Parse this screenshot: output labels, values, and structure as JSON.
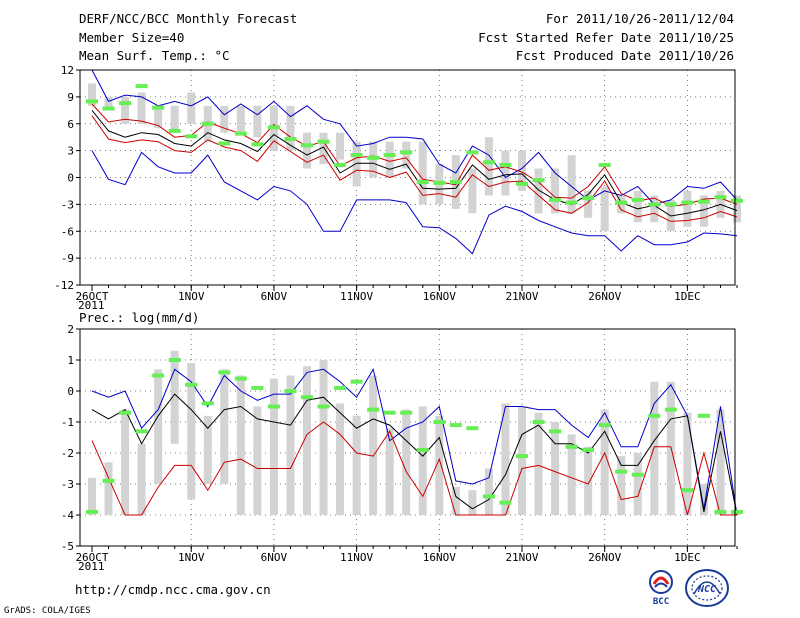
{
  "header": {
    "title": "DERF/NCC/BCC Monthly Forecast",
    "member_size": "Member Size=40",
    "variable_top": "Mean Surf. Temp.: °C",
    "period": "For 2011/10/26-2011/12/04",
    "fcst_started": "Fcst Started Refer Date 2011/10/25",
    "fcst_produced": "Fcst Produced Date 2011/10/26"
  },
  "footer": {
    "url": "http://cmdp.ncc.cma.gov.cn",
    "grads": "GrADS: COLA/IGES",
    "logo_bcc": "BCC",
    "logo_ncc": "NCC"
  },
  "colors": {
    "max_line": "#0000cc",
    "mean_line": "#000000",
    "min_line": "#cc0000",
    "spread_box": "#d3d3d3",
    "obs_marker": "#66ee55",
    "grid": "#555555"
  },
  "chart_data": [
    {
      "type": "line",
      "title": "Mean Surf. Temp.: °C",
      "ylim": [
        -12,
        12
      ],
      "yticks": [
        12,
        9,
        6,
        3,
        0,
        -3,
        -6,
        -9,
        -12
      ],
      "x_ticks": [
        {
          "day": 0,
          "label": "26OCT",
          "sub": "2011"
        },
        {
          "day": 6,
          "label": "1NOV"
        },
        {
          "day": 11,
          "label": "6NOV"
        },
        {
          "day": 16,
          "label": "11NOV"
        },
        {
          "day": 21,
          "label": "16NOV"
        },
        {
          "day": 26,
          "label": "21NOV"
        },
        {
          "day": 31,
          "label": "26NOV"
        },
        {
          "day": 36,
          "label": "1DEC"
        }
      ],
      "days": 40,
      "series": [
        {
          "name": "max",
          "values": [
            12,
            8.5,
            9.2,
            9,
            8,
            8.5,
            8,
            9,
            7,
            8.2,
            7,
            8.5,
            6.8,
            8,
            6.5,
            6,
            3.5,
            3.8,
            4.5,
            4.5,
            4.3,
            1.5,
            0.5,
            3.5,
            2.5,
            0,
            1,
            2.8,
            0.5,
            -1,
            -2.5,
            -1.5,
            -2,
            -1,
            -3,
            -2.5,
            -1,
            -1.2,
            -0.5,
            -2.5
          ]
        },
        {
          "name": "upper",
          "values": [
            8.2,
            6.2,
            6.5,
            6.3,
            5.8,
            4.5,
            4.7,
            6.2,
            5.5,
            4.9,
            3.9,
            5.9,
            4.5,
            3.5,
            4,
            1.3,
            2.2,
            2.4,
            1.8,
            2.2,
            -0.2,
            -0.5,
            -0.8,
            2.5,
            0.8,
            1.2,
            0.6,
            -0.5,
            -2.2,
            -2.3,
            -1,
            1.2,
            -1.8,
            -2.6,
            -2.3,
            -3.2,
            -3,
            -2.4,
            -2.3,
            -3
          ]
        },
        {
          "name": "mean",
          "values": [
            7.5,
            5.2,
            4.5,
            5,
            4.8,
            3.8,
            3.5,
            5,
            4.2,
            3.8,
            2.9,
            4.8,
            3.6,
            2.5,
            3.4,
            0.5,
            1.6,
            1.6,
            0.9,
            1.5,
            -1.2,
            -1.3,
            -1.2,
            1.4,
            -0.2,
            0.3,
            0.4,
            -1.4,
            -2.5,
            -3,
            -1.9,
            0.3,
            -2.8,
            -3.5,
            -3.1,
            -4.3,
            -4,
            -3.6,
            -3,
            -3.7
          ]
        },
        {
          "name": "lower",
          "values": [
            6.9,
            4.3,
            3.9,
            4.2,
            4,
            3,
            2.8,
            4.2,
            3.4,
            3,
            1.8,
            4.1,
            2.9,
            1.7,
            2.5,
            -0.3,
            0.8,
            0.7,
            0,
            0.6,
            -2,
            -1.8,
            -2.2,
            0.3,
            -1,
            -0.5,
            -0.4,
            -2,
            -3.6,
            -4,
            -2.8,
            -0.4,
            -3.6,
            -4.4,
            -4,
            -4.9,
            -4.8,
            -4.5,
            -3.8,
            -4.4
          ]
        },
        {
          "name": "min",
          "values": [
            3,
            -0.2,
            -0.8,
            2.8,
            1.2,
            0.5,
            0.5,
            2.5,
            -0.5,
            -1.5,
            -2.5,
            -1,
            -1.5,
            -3,
            -6,
            -6,
            -2.5,
            -2.5,
            -2.5,
            -2.8,
            -5.5,
            -5.6,
            -6.8,
            -8.5,
            -4.2,
            -3.2,
            -3.8,
            -4.8,
            -5.5,
            -6.2,
            -6.5,
            -6.5,
            -8.2,
            -6.5,
            -7.5,
            -7.5,
            -7.2,
            -6.2,
            -6.3,
            -6.5
          ]
        }
      ],
      "boxes": [
        [
          8,
          10.5
        ],
        [
          7.5,
          9
        ],
        [
          6,
          9
        ],
        [
          6,
          9.5
        ],
        [
          5.5,
          8
        ],
        [
          5,
          8
        ],
        [
          6,
          9.5
        ],
        [
          4,
          8
        ],
        [
          5,
          8
        ],
        [
          5,
          8
        ],
        [
          4.5,
          8
        ],
        [
          3,
          8
        ],
        [
          3,
          8
        ],
        [
          1,
          5
        ],
        [
          1.5,
          5
        ],
        [
          2,
          5
        ],
        [
          -1,
          4
        ],
        [
          0,
          4
        ],
        [
          0,
          4
        ],
        [
          1,
          4
        ],
        [
          -3,
          4
        ],
        [
          -3,
          1.5
        ],
        [
          -3.5,
          2.5
        ],
        [
          -4,
          1
        ],
        [
          -2,
          4.5
        ],
        [
          -2,
          3
        ],
        [
          -1.5,
          3
        ],
        [
          -4,
          1
        ],
        [
          -4,
          1
        ],
        [
          -4,
          2.5
        ],
        [
          -4.5,
          -1.5
        ],
        [
          -6,
          -1
        ],
        [
          -4,
          -2
        ],
        [
          -5,
          -1.5
        ],
        [
          -5,
          -2
        ],
        [
          -6,
          -2.5
        ],
        [
          -5.5,
          -1.5
        ],
        [
          -5.5,
          -2
        ],
        [
          -4.5,
          -1.5
        ],
        [
          -5,
          -2
        ]
      ],
      "obs": [
        8.5,
        7.7,
        8.3,
        10.2,
        7.8,
        5.2,
        4.6,
        6,
        3.8,
        4.9,
        3.7,
        5.6,
        4.3,
        3.6,
        4,
        1.4,
        2.5,
        2.2,
        2.5,
        2.8,
        -0.5,
        -0.6,
        -0.5,
        2.8,
        1.7,
        1.4,
        -0.7,
        -0.3,
        -2.5,
        -2.8,
        -2.3,
        1.4,
        -2.8,
        -2.5,
        -3,
        -3,
        -2.8,
        -2.7,
        -2.2,
        -2.6
      ]
    },
    {
      "type": "line",
      "title": "Prec.: log(mm/d)",
      "ylim": [
        -5,
        2
      ],
      "yticks": [
        2,
        1,
        0,
        -1,
        -2,
        -3,
        -4,
        -5
      ],
      "x_ticks": [
        {
          "day": 0,
          "label": "26OCT",
          "sub": "2011"
        },
        {
          "day": 6,
          "label": "1NOV"
        },
        {
          "day": 11,
          "label": "6NOV"
        },
        {
          "day": 16,
          "label": "11NOV"
        },
        {
          "day": 21,
          "label": "16NOV"
        },
        {
          "day": 26,
          "label": "21NOV"
        },
        {
          "day": 31,
          "label": "26NOV"
        },
        {
          "day": 36,
          "label": "1DEC"
        }
      ],
      "days": 40,
      "series": [
        {
          "name": "max",
          "values": [
            0,
            -0.2,
            0,
            -1.2,
            -0.6,
            0.7,
            0.3,
            -0.5,
            0.5,
            0,
            -0.3,
            -0.1,
            -0.1,
            0.6,
            0.7,
            0.3,
            -0.2,
            0.7,
            -1.6,
            -1.2,
            -1,
            -0.5,
            -2.9,
            -3,
            -2.8,
            -0.5,
            -0.5,
            -0.6,
            -0.6,
            -1.1,
            -1.5,
            -0.7,
            -1.8,
            -1.8,
            -0.4,
            0.2,
            -0.8,
            -3.8,
            -0.5,
            -4
          ]
        },
        {
          "name": "mean",
          "values": [
            -0.6,
            -0.9,
            -0.6,
            -1.7,
            -0.8,
            -0.1,
            -0.6,
            -1.2,
            -0.6,
            -0.5,
            -0.9,
            -1,
            -1.1,
            -0.3,
            -0.2,
            -0.7,
            -1.2,
            -0.9,
            -1.1,
            -1.6,
            -2.1,
            -1.5,
            -3.4,
            -3.8,
            -3.5,
            -2.7,
            -1.4,
            -1.1,
            -1.7,
            -1.7,
            -2,
            -1.3,
            -2.4,
            -2.4,
            -1.6,
            -0.9,
            -0.8,
            -3.9,
            -1.3,
            -4
          ]
        },
        {
          "name": "min",
          "values": [
            -1.6,
            -2.8,
            -4,
            -4,
            -3.1,
            -2.4,
            -2.4,
            -3.2,
            -2.3,
            -2.2,
            -2.5,
            -2.5,
            -2.5,
            -1.4,
            -1,
            -1.4,
            -2,
            -2.1,
            -1.3,
            -2.6,
            -3.4,
            -2.2,
            -4,
            -4,
            -4,
            -4,
            -2.5,
            -2.4,
            -2.6,
            -2.8,
            -3,
            -2,
            -3.5,
            -3.4,
            -1.8,
            -1.8,
            -4,
            -2,
            -4,
            -4
          ]
        }
      ],
      "boxes": [
        [
          -4,
          -2.8
        ],
        [
          -4,
          -2.3
        ],
        [
          -4,
          -0.6
        ],
        [
          -4,
          -1.7
        ],
        [
          -3,
          0.7
        ],
        [
          -1.7,
          1.3
        ],
        [
          -3.5,
          0.9
        ],
        [
          -3,
          -0.8
        ],
        [
          -3,
          0.7
        ],
        [
          -4,
          0.5
        ],
        [
          -4,
          -0.5
        ],
        [
          -4,
          0.4
        ],
        [
          -4,
          0.5
        ],
        [
          -4,
          0.8
        ],
        [
          -4,
          1
        ],
        [
          -4,
          -0.4
        ],
        [
          -4,
          -0.8
        ],
        [
          -4,
          0.5
        ],
        [
          -4,
          -1.2
        ],
        [
          -4,
          -0.6
        ],
        [
          -4,
          -0.5
        ],
        [
          -4,
          -0.8
        ],
        [
          -4,
          -3.1
        ],
        [
          -4,
          -3.2
        ],
        [
          -4,
          -2.5
        ],
        [
          -4,
          -0.4
        ],
        [
          -4,
          -0.5
        ],
        [
          -4,
          -0.7
        ],
        [
          -4,
          -1
        ],
        [
          -4,
          -1.4
        ],
        [
          -4,
          -1.8
        ],
        [
          -4,
          -0.6
        ],
        [
          -4,
          -2.1
        ],
        [
          -4,
          -2
        ],
        [
          -4,
          0.3
        ],
        [
          -4,
          0.3
        ],
        [
          -4,
          -0.7
        ],
        [
          -4,
          -3
        ],
        [
          -4,
          -0.6
        ],
        [
          -4,
          -3.9
        ]
      ],
      "obs": [
        -3.9,
        -2.9,
        -0.7,
        -1.3,
        0.5,
        1,
        0.2,
        -0.4,
        0.6,
        0.4,
        0.1,
        -0.5,
        0,
        -0.2,
        -0.5,
        0.1,
        0.3,
        -0.6,
        -0.7,
        -0.7,
        -1.9,
        -1,
        -1.1,
        -1.2,
        -3.4,
        -3.6,
        -2.1,
        -1,
        -1.3,
        -1.8,
        -1.9,
        -1.1,
        -2.6,
        -2.7,
        -0.8,
        -0.6,
        -3.2,
        -0.8,
        -3.9,
        -3.9
      ]
    }
  ]
}
